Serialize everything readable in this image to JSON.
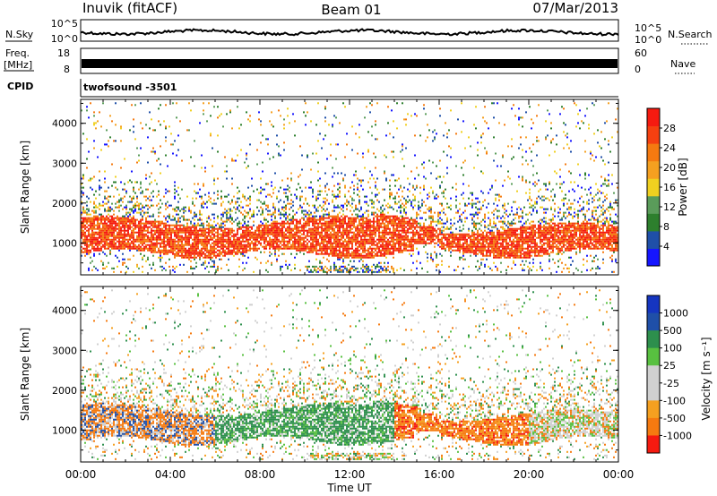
{
  "header": {
    "station": "Inuvik (fitACF)",
    "beam": "Beam 01",
    "date": "07/Mar/2013"
  },
  "top_panels": {
    "nsky_label": "N.Sky",
    "nsky_ticks": [
      "10^5",
      "10^0"
    ],
    "nsearch_label": "N.Search",
    "nsearch_ticks": [
      "10^5",
      "10^0"
    ],
    "freq_label": "Freq.",
    "freq_unit": "[MHz]",
    "freq_ticks": [
      "18",
      "8"
    ],
    "nave_label": "Nave",
    "nave_ticks": [
      "60",
      "0"
    ],
    "cpid_label": "CPID",
    "cpid_value": "twofsound -3501"
  },
  "colors": {
    "power_scale": [
      "#1515ff",
      "#1f4fa8",
      "#2d7f2d",
      "#5a9c5a",
      "#f0d020",
      "#f5a020",
      "#f57a10",
      "#f54010",
      "#f51a10"
    ],
    "velocity_scale": [
      "#f51a10",
      "#f57a10",
      "#f5a020",
      "#d0d0d0",
      "#d0d0d0",
      "#58c040",
      "#2d8f4d",
      "#1f4fa8",
      "#1535c0"
    ]
  },
  "chart_data": [
    {
      "type": "heatmap",
      "name": "power",
      "xlabel": "",
      "ylabel": "Slant Range [km]",
      "yticks": [
        "1000",
        "2000",
        "3000",
        "4000"
      ],
      "ylim": [
        200,
        4600
      ],
      "xlim_hours": [
        0,
        24
      ],
      "colorbar": {
        "label": "Power [dB]",
        "ticks": [
          "4",
          "8",
          "12",
          "16",
          "20",
          "24",
          "28"
        ],
        "range": [
          0,
          32
        ]
      },
      "main_band_km": {
        "start": 700,
        "end": 1500
      }
    },
    {
      "type": "heatmap",
      "name": "velocity",
      "xlabel": "Time UT",
      "xticks": [
        "00:00",
        "04:00",
        "08:00",
        "12:00",
        "16:00",
        "20:00",
        "00:00"
      ],
      "ylabel": "Slant Range [km]",
      "yticks": [
        "1000",
        "2000",
        "3000",
        "4000"
      ],
      "ylim": [
        200,
        4600
      ],
      "xlim_hours": [
        0,
        24
      ],
      "colorbar": {
        "label": "Velocity [m s⁻¹]",
        "ticks": [
          "1000",
          "500",
          "100",
          "25",
          "-25",
          "-100",
          "-500",
          "-1000"
        ]
      },
      "main_band_km": {
        "start": 700,
        "end": 1500
      }
    }
  ]
}
